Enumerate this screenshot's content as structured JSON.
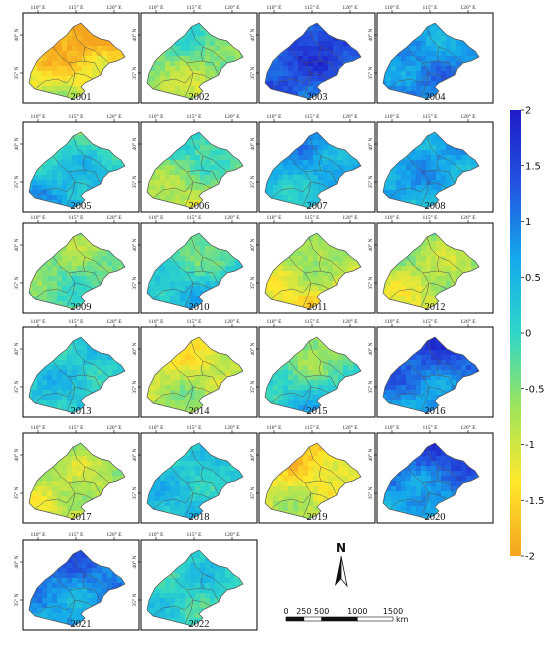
{
  "figure": {
    "panels": [
      {
        "year": "2001",
        "base": -1.55,
        "seed": 1
      },
      {
        "year": "2002",
        "base": -0.55,
        "seed": 2
      },
      {
        "year": "2003",
        "base": 1.45,
        "seed": 3
      },
      {
        "year": "2004",
        "base": 0.85,
        "seed": 4
      },
      {
        "year": "2005",
        "base": 0.3,
        "seed": 5
      },
      {
        "year": "2006",
        "base": -0.4,
        "seed": 6
      },
      {
        "year": "2007",
        "base": 0.55,
        "seed": 7
      },
      {
        "year": "2008",
        "base": 0.65,
        "seed": 8
      },
      {
        "year": "2009",
        "base": -0.4,
        "seed": 9
      },
      {
        "year": "2010",
        "base": 0.05,
        "seed": 10
      },
      {
        "year": "2011",
        "base": -0.9,
        "seed": 11
      },
      {
        "year": "2012",
        "base": -0.85,
        "seed": 12
      },
      {
        "year": "2013",
        "base": 0.25,
        "seed": 13
      },
      {
        "year": "2014",
        "base": -0.95,
        "seed": 14
      },
      {
        "year": "2015",
        "base": -0.15,
        "seed": 15
      },
      {
        "year": "2016",
        "base": 1.05,
        "seed": 16
      },
      {
        "year": "2017",
        "base": -0.85,
        "seed": 17
      },
      {
        "year": "2018",
        "base": 0.25,
        "seed": 18
      },
      {
        "year": "2019",
        "base": -1.2,
        "seed": 19
      },
      {
        "year": "2020",
        "base": 0.95,
        "seed": 20
      },
      {
        "year": "2021",
        "base": 0.85,
        "seed": 21
      },
      {
        "year": "2022",
        "base": 0.1,
        "seed": 22
      }
    ],
    "lon_ticks": [
      "110° E",
      "115° E",
      "120° E"
    ],
    "lat_ticks": [
      "40° N",
      "35° N"
    ],
    "colorbar": {
      "ticks": [
        "2",
        "1.5",
        "1",
        "0.5",
        "0",
        "-0.5",
        "-1",
        "-1.5",
        "-2"
      ],
      "min": -2,
      "max": 2,
      "stops": [
        "#F5A41E",
        "#FFE82C",
        "#9EE45A",
        "#2FD7C8",
        "#14A9EC",
        "#2254E0",
        "#1E1BC8"
      ]
    },
    "north_arrow": {
      "label": "N"
    },
    "scale_bar": {
      "ticks": [
        "0",
        "250",
        "500",
        "1000",
        "1500"
      ],
      "unit": "km"
    }
  }
}
